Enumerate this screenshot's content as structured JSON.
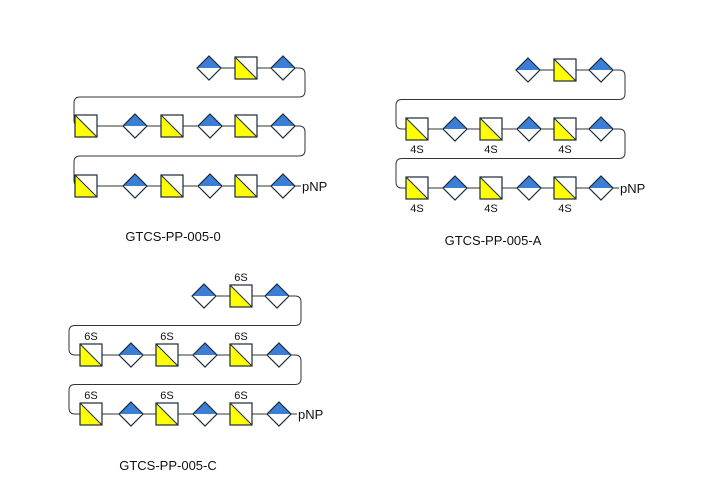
{
  "colors": {
    "galnac_yellow": "#ffff00",
    "glca_blue": "#3a7fd5",
    "outline": "#1a2a3a",
    "line": "#333333"
  },
  "icons": {
    "square": "galnac-square-icon",
    "diamond": "glca-diamond-icon"
  },
  "structures": [
    {
      "id": "GTCS-PP-005-0",
      "label": "GTCS-PP-005-0",
      "terminal": "pNP",
      "rows": [
        [
          "D",
          "S",
          "D"
        ],
        [
          "S",
          "D",
          "S",
          "D",
          "S",
          "D"
        ],
        [
          "S",
          "D",
          "S",
          "D",
          "S",
          "D"
        ]
      ],
      "sulfates": [
        [
          null,
          null,
          null
        ],
        [
          null,
          null,
          null,
          null,
          null,
          null
        ],
        [
          null,
          null,
          null,
          null,
          null,
          null
        ]
      ]
    },
    {
      "id": "GTCS-PP-005-A",
      "label": "GTCS-PP-005-A",
      "terminal": "pNP",
      "rows": [
        [
          "D",
          "S",
          "D"
        ],
        [
          "S",
          "D",
          "S",
          "D",
          "S",
          "D"
        ],
        [
          "S",
          "D",
          "S",
          "D",
          "S",
          "D"
        ]
      ],
      "sulfates": [
        [
          null,
          null,
          null
        ],
        [
          "4S",
          null,
          "4S",
          null,
          "4S",
          null
        ],
        [
          "4S",
          null,
          "4S",
          null,
          "4S",
          null
        ]
      ]
    },
    {
      "id": "GTCS-PP-005-C",
      "label": "GTCS-PP-005-C",
      "terminal": "pNP",
      "rows": [
        [
          "D",
          "S",
          "D"
        ],
        [
          "S",
          "D",
          "S",
          "D",
          "S",
          "D"
        ],
        [
          "S",
          "D",
          "S",
          "D",
          "S",
          "D"
        ]
      ],
      "sulfates": [
        [
          null,
          "6S",
          null
        ],
        [
          "6S",
          null,
          "6S",
          null,
          "6S",
          null
        ],
        [
          "6S",
          null,
          "6S",
          null,
          "6S",
          null
        ]
      ]
    }
  ]
}
